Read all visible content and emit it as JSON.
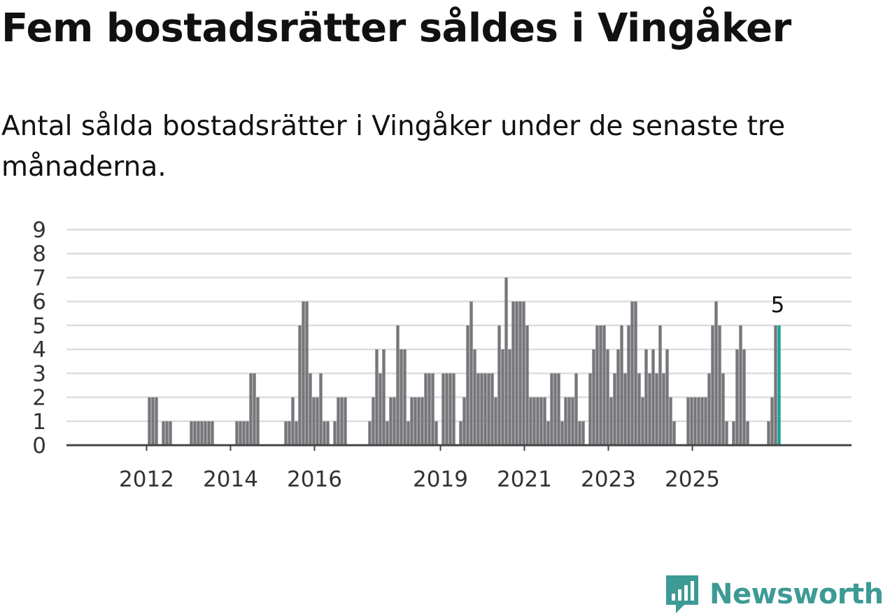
{
  "title": "Fem bostadsrätter såldes i Vingåker",
  "subtitle": "Antal sålda bostadsrätter i Vingåker under de senaste tre månaderna.",
  "logo": {
    "icon": "bar-chart-speech-bubble-icon",
    "text": "Newsworthy"
  },
  "colors": {
    "bar": "#77767b",
    "highlight": "#17a39a",
    "grid": "#dddddd",
    "axis": "#444444",
    "brand": "#3d9a95"
  },
  "chart_data": {
    "type": "bar",
    "title": "Fem bostadsrätter såldes i Vingåker",
    "subtitle": "Antal sålda bostadsrätter i Vingåker under de senaste tre månaderna.",
    "xlabel": "",
    "ylabel": "",
    "ylim": [
      0,
      9
    ],
    "yticks": [
      "0",
      "1",
      "2",
      "3",
      "4",
      "5",
      "6",
      "7",
      "8",
      "9"
    ],
    "xticks": [
      "2012",
      "2014",
      "2016",
      "2019",
      "2021",
      "2023",
      "2025"
    ],
    "grid": true,
    "start": "2011-01",
    "interval": "month",
    "values": [
      0,
      0,
      0,
      0,
      0,
      0,
      0,
      0,
      0,
      0,
      0,
      0,
      2,
      2,
      2,
      0,
      1,
      1,
      1,
      0,
      0,
      0,
      0,
      0,
      1,
      1,
      1,
      1,
      1,
      1,
      1,
      0,
      0,
      0,
      0,
      0,
      0,
      1,
      1,
      1,
      1,
      3,
      3,
      2,
      0,
      0,
      0,
      0,
      0,
      0,
      0,
      1,
      1,
      2,
      1,
      5,
      6,
      6,
      3,
      2,
      2,
      3,
      1,
      1,
      0,
      1,
      2,
      2,
      2,
      0,
      0,
      0,
      0,
      0,
      0,
      1,
      2,
      4,
      3,
      4,
      1,
      2,
      2,
      5,
      4,
      4,
      1,
      2,
      2,
      2,
      2,
      3,
      3,
      3,
      1,
      0,
      3,
      3,
      3,
      3,
      0,
      1,
      2,
      5,
      6,
      4,
      3,
      3,
      3,
      3,
      3,
      2,
      5,
      4,
      7,
      4,
      6,
      6,
      6,
      6,
      5,
      2,
      2,
      2,
      2,
      2,
      1,
      3,
      3,
      3,
      1,
      2,
      2,
      2,
      3,
      1,
      1,
      0,
      3,
      4,
      5,
      5,
      5,
      4,
      2,
      3,
      4,
      5,
      3,
      5,
      6,
      6,
      3,
      2,
      4,
      3,
      4,
      3,
      5,
      3,
      4,
      2,
      1,
      0,
      0,
      0,
      2,
      2,
      2,
      2,
      2,
      2,
      3,
      5,
      6,
      5,
      3,
      1,
      0,
      1,
      4,
      5,
      4,
      1,
      0,
      0,
      0,
      0,
      0,
      1,
      2,
      5,
      5
    ],
    "highlight_last": true,
    "annotations": [
      {
        "label": "5"
      }
    ]
  }
}
